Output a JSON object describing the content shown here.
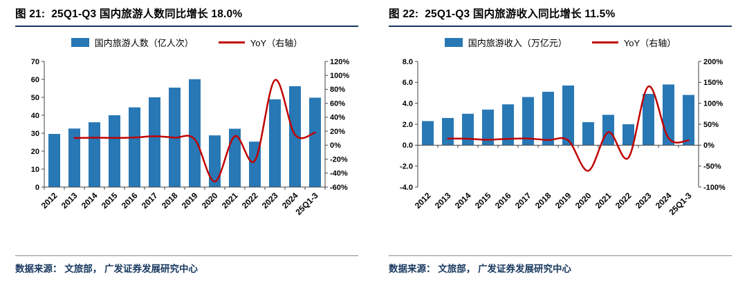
{
  "panels": [
    {
      "title": "图 21:  25Q1-Q3 国内旅游人数同比增长 18.0%",
      "legend_bar": "国内旅游人数（亿人次）",
      "legend_line": "YoY（右轴）",
      "source": "数据来源： 文旅部， 广发证券发展研究中心"
    },
    {
      "title": "图 22:  25Q1-Q3 国内旅游收入同比增长 11.5%",
      "legend_bar": "国内旅游收入（万亿元）",
      "legend_line": "YoY（右轴）",
      "source": "数据来源： 文旅部， 广发证券发展研究中心"
    }
  ],
  "chart_data": [
    {
      "type": "bar",
      "title": "25Q1-Q3 国内旅游人数同比增长 18.0%",
      "categories": [
        "2012",
        "2013",
        "2014",
        "2015",
        "2016",
        "2017",
        "2018",
        "2019",
        "2020",
        "2021",
        "2022",
        "2023",
        "2024",
        "25Q1-3"
      ],
      "series": [
        {
          "name": "国内旅游人数（亿人次）",
          "type": "bar",
          "axis": "left",
          "values": [
            29.6,
            32.6,
            36.1,
            40.0,
            44.4,
            50.0,
            55.4,
            60.1,
            28.8,
            32.5,
            25.3,
            48.9,
            56.2,
            49.8
          ]
        },
        {
          "name": "YoY（右轴）",
          "type": "line",
          "axis": "right",
          "values": [
            null,
            10.3,
            10.7,
            10.5,
            11.0,
            12.8,
            10.8,
            8.4,
            -52.1,
            12.8,
            -22.1,
            93.3,
            14.9,
            18.0
          ]
        }
      ],
      "left_axis": {
        "min": 0,
        "max": 70,
        "step": 10,
        "decimals": 0
      },
      "right_axis": {
        "min": -60,
        "max": 120,
        "step": 20,
        "suffix": "%"
      },
      "colors": {
        "bar": "#2878B5",
        "line": "#C00000"
      },
      "grid": false,
      "legend_position": "top"
    },
    {
      "type": "bar",
      "title": "25Q1-Q3 国内旅游收入同比增长 11.5%",
      "categories": [
        "2012",
        "2013",
        "2014",
        "2015",
        "2016",
        "2017",
        "2018",
        "2019",
        "2020",
        "2021",
        "2022",
        "2023",
        "2024",
        "25Q1-3"
      ],
      "series": [
        {
          "name": "国内旅游收入（万亿元）",
          "type": "bar",
          "axis": "left",
          "values": [
            2.3,
            2.6,
            3.0,
            3.4,
            3.9,
            4.6,
            5.1,
            5.7,
            2.2,
            2.9,
            2.0,
            4.9,
            5.8,
            4.8
          ]
        },
        {
          "name": "YoY（右轴）",
          "type": "line",
          "axis": "right",
          "values": [
            null,
            15.7,
            15.4,
            13.0,
            15.2,
            15.9,
            12.3,
            11.7,
            -61.1,
            31.0,
            -30.0,
            140.3,
            17.1,
            11.5
          ]
        }
      ],
      "left_axis": {
        "min": -4,
        "max": 8,
        "step": 2,
        "decimals": 1
      },
      "right_axis": {
        "min": -100,
        "max": 200,
        "step": 50,
        "suffix": "%"
      },
      "colors": {
        "bar": "#2878B5",
        "line": "#C00000"
      },
      "grid": false,
      "legend_position": "top"
    }
  ]
}
